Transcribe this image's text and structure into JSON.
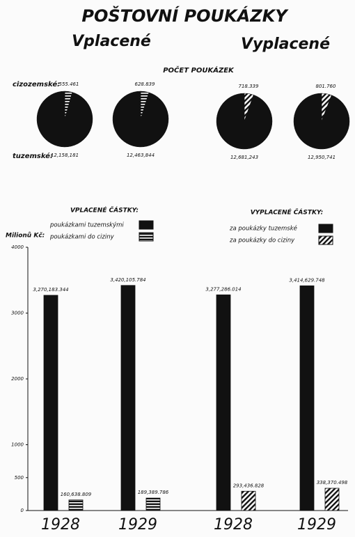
{
  "title": "POŠTOVNÍ POUKÁZKY",
  "subtitles": [
    "Vplacené",
    "Vyplacené"
  ],
  "chart_data": [
    {
      "type": "pie",
      "title": "POČET POUKÁZEK",
      "categories": [
        "cizozemské:",
        "tuzemské:"
      ],
      "series": [
        {
          "values": [
            555461,
            12158181
          ],
          "value_labels": [
            "555.461",
            "12,158,181"
          ],
          "color": "#111111",
          "pattern": "horizontal"
        },
        {
          "values": [
            628839,
            12463844
          ],
          "value_labels": [
            "628.839",
            "12,463,844"
          ],
          "color": "#111111",
          "pattern": "horizontal"
        },
        {
          "values": [
            718339,
            12681243
          ],
          "value_labels": [
            "718.339",
            "12,681,243"
          ],
          "color": "#111111",
          "pattern": "diagonal"
        },
        {
          "values": [
            801760,
            12950741
          ],
          "value_labels": [
            "801.760",
            "12,950,741"
          ],
          "color": "#111111",
          "pattern": "diagonal"
        }
      ]
    },
    {
      "type": "bar",
      "y_label": "Milionů Kč:",
      "categories": [
        "1928",
        "1929",
        "1928",
        "1929"
      ],
      "legend_titles": [
        "VPLACENÉ ČÁSTKY:",
        "VYPLACENÉ ČÁSTKY:"
      ],
      "ylim": [
        0,
        4000
      ],
      "yticks": [
        0,
        500,
        1000,
        2000,
        3000,
        4000
      ],
      "series": [
        {
          "name": "poukázkami tuzemskými",
          "group": 0,
          "color": "#111111",
          "pattern": "solid",
          "values": [
            3270.183344,
            3420.105784,
            null,
            null
          ],
          "value_labels": [
            "3,270,183.344",
            "3,420,105.784",
            null,
            null
          ]
        },
        {
          "name": "poukázkami do ciziny",
          "group": 0,
          "color": "#111111",
          "pattern": "horizontal",
          "values": [
            160.638809,
            189.389786,
            null,
            null
          ],
          "value_labels": [
            "160,638.809",
            "189,389.786",
            null,
            null
          ]
        },
        {
          "name": "za poukázky tuzemské",
          "group": 1,
          "color": "#111111",
          "pattern": "solid",
          "values": [
            null,
            null,
            3277.286014,
            3414.629748
          ],
          "value_labels": [
            null,
            null,
            "3,277,286.014",
            "3,414,629.748"
          ]
        },
        {
          "name": "za poukázky do ciziny",
          "group": 1,
          "color": "#111111",
          "pattern": "diagonal",
          "values": [
            null,
            null,
            293.436828,
            338.370498
          ],
          "value_labels": [
            null,
            null,
            "293,436.828",
            "338,370.498"
          ]
        }
      ]
    }
  ]
}
